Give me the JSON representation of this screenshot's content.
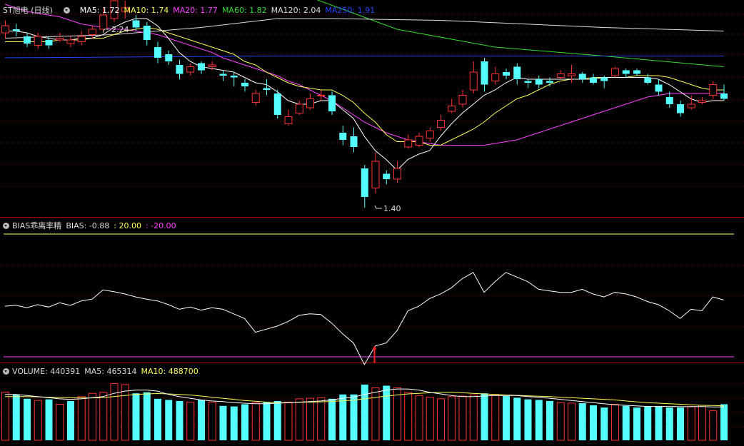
{
  "header": {
    "stock": "ST旭电 (日线)",
    "ma_labels": [
      {
        "label": "MA5: 1.72",
        "color": "#ffffff"
      },
      {
        "label": "MA10: 1.74",
        "color": "#ffff55"
      },
      {
        "label": "MA20: 1.77",
        "color": "#ff44ff"
      },
      {
        "label": "MA60: 1.82",
        "color": "#33dd33"
      },
      {
        "label": "MA120: 2.04",
        "color": "#dddddd"
      },
      {
        "label": "MA250: 1.91",
        "color": "#2244ff"
      }
    ],
    "high_label": "2.24",
    "low_label": "1.40"
  },
  "bias_header": {
    "name": "BIAS乖离率精",
    "value": "BIAS: -0.88",
    "upper": ": 20.00",
    "lower": ": -20.00"
  },
  "volume_header": {
    "value": "VOLUME: 440391",
    "ma5": "MA5: 465314",
    "ma10": "MA10: 488700"
  },
  "colors": {
    "up": "#ff3232",
    "down": "#54ffff",
    "grid": "#8b0000"
  },
  "chart_data": {
    "type": "candlestick",
    "candles": [
      [
        1.98,
        2.02,
        2.05,
        1.95
      ],
      [
        2.0,
        1.99,
        2.03,
        1.96
      ],
      [
        1.96,
        1.92,
        1.98,
        1.9
      ],
      [
        1.91,
        1.96,
        1.98,
        1.89
      ],
      [
        1.94,
        1.91,
        1.96,
        1.89
      ],
      [
        1.94,
        1.95,
        1.98,
        1.93
      ],
      [
        1.92,
        1.94,
        1.96,
        1.9
      ],
      [
        1.93,
        1.96,
        1.99,
        1.91
      ],
      [
        1.97,
        2.0,
        2.02,
        1.95
      ],
      [
        2.0,
        2.08,
        2.12,
        1.99
      ],
      [
        2.06,
        2.16,
        2.24,
        2.04
      ],
      [
        2.1,
        2.12,
        2.16,
        2.06
      ],
      [
        2.05,
        2.01,
        2.08,
        1.99
      ],
      [
        2.02,
        1.94,
        2.04,
        1.91
      ],
      [
        1.9,
        1.84,
        1.93,
        1.81
      ],
      [
        1.86,
        1.82,
        1.88,
        1.8
      ],
      [
        1.8,
        1.75,
        1.83,
        1.72
      ],
      [
        1.76,
        1.79,
        1.81,
        1.74
      ],
      [
        1.81,
        1.77,
        1.82,
        1.75
      ],
      [
        1.79,
        1.8,
        1.82,
        1.77
      ],
      [
        1.75,
        1.74,
        1.77,
        1.71
      ],
      [
        1.74,
        1.73,
        1.76,
        1.68
      ],
      [
        1.7,
        1.68,
        1.72,
        1.65
      ],
      [
        1.59,
        1.64,
        1.66,
        1.57
      ],
      [
        1.67,
        1.66,
        1.72,
        1.63
      ],
      [
        1.64,
        1.52,
        1.66,
        1.5
      ],
      [
        1.47,
        1.51,
        1.55,
        1.46
      ],
      [
        1.53,
        1.58,
        1.6,
        1.52
      ],
      [
        1.56,
        1.61,
        1.64,
        1.55
      ],
      [
        1.63,
        1.63,
        1.66,
        1.6
      ],
      [
        1.63,
        1.54,
        1.65,
        1.52
      ],
      [
        1.42,
        1.38,
        1.46,
        1.35
      ],
      [
        1.4,
        1.34,
        1.45,
        1.31
      ],
      [
        1.22,
        1.06,
        1.24,
        1.0
      ],
      [
        1.11,
        1.26,
        1.31,
        1.08
      ],
      [
        1.19,
        1.16,
        1.21,
        1.13
      ],
      [
        1.16,
        1.22,
        1.26,
        1.14
      ],
      [
        1.34,
        1.38,
        1.41,
        1.33
      ],
      [
        1.35,
        1.4,
        1.42,
        1.34
      ],
      [
        1.39,
        1.43,
        1.45,
        1.37
      ],
      [
        1.45,
        1.49,
        1.52,
        1.43
      ],
      [
        1.54,
        1.57,
        1.61,
        1.53
      ],
      [
        1.58,
        1.63,
        1.66,
        1.56
      ],
      [
        1.66,
        1.76,
        1.82,
        1.64
      ],
      [
        1.82,
        1.69,
        1.84,
        1.65
      ],
      [
        1.71,
        1.75,
        1.79,
        1.69
      ],
      [
        1.76,
        1.74,
        1.78,
        1.72
      ],
      [
        1.79,
        1.72,
        1.81,
        1.69
      ],
      [
        1.71,
        1.7,
        1.72,
        1.67
      ],
      [
        1.72,
        1.69,
        1.74,
        1.67
      ],
      [
        1.71,
        1.7,
        1.73,
        1.68
      ],
      [
        1.73,
        1.75,
        1.77,
        1.72
      ],
      [
        1.74,
        1.75,
        1.8,
        1.7
      ],
      [
        1.75,
        1.72,
        1.76,
        1.7
      ],
      [
        1.73,
        1.7,
        1.75,
        1.69
      ],
      [
        1.73,
        1.71,
        1.74,
        1.67
      ],
      [
        1.74,
        1.78,
        1.79,
        1.73
      ],
      [
        1.77,
        1.75,
        1.78,
        1.73
      ],
      [
        1.77,
        1.75,
        1.78,
        1.74
      ],
      [
        1.73,
        1.7,
        1.75,
        1.69
      ],
      [
        1.69,
        1.65,
        1.72,
        1.63
      ],
      [
        1.62,
        1.58,
        1.65,
        1.56
      ],
      [
        1.58,
        1.53,
        1.6,
        1.51
      ],
      [
        1.56,
        1.58,
        1.63,
        1.55
      ],
      [
        1.59,
        1.6,
        1.62,
        1.58
      ],
      [
        1.63,
        1.69,
        1.71,
        1.61
      ],
      [
        1.64,
        1.61,
        1.69,
        1.6
      ]
    ],
    "ma5": [
      1.99,
      1.99,
      1.98,
      1.96,
      1.95,
      1.94,
      1.94,
      1.95,
      1.95,
      1.97,
      2.01,
      2.04,
      2.06,
      2.06,
      2.02,
      1.95,
      1.87,
      1.82,
      1.79,
      1.78,
      1.77,
      1.76,
      1.73,
      1.7,
      1.69,
      1.65,
      1.6,
      1.58,
      1.58,
      1.6,
      1.6,
      1.55,
      1.5,
      1.4,
      1.32,
      1.27,
      1.21,
      1.27,
      1.3,
      1.32,
      1.4,
      1.47,
      1.53,
      1.58,
      1.63,
      1.66,
      1.7,
      1.73,
      1.72,
      1.72,
      1.72,
      1.72,
      1.72,
      1.72,
      1.72,
      1.73,
      1.73,
      1.73,
      1.73,
      1.73,
      1.72,
      1.69,
      1.65,
      1.61,
      1.59,
      1.6,
      1.6
    ],
    "ma10": [
      1.93,
      1.93,
      1.93,
      1.93,
      1.93,
      1.94,
      1.94,
      1.94,
      1.95,
      1.95,
      1.97,
      1.99,
      2.0,
      2.01,
      2.0,
      1.98,
      1.96,
      1.94,
      1.92,
      1.9,
      1.88,
      1.86,
      1.82,
      1.8,
      1.76,
      1.73,
      1.7,
      1.68,
      1.67,
      1.66,
      1.66,
      1.63,
      1.59,
      1.53,
      1.48,
      1.41,
      1.37,
      1.37,
      1.37,
      1.35,
      1.35,
      1.38,
      1.41,
      1.44,
      1.48,
      1.53,
      1.57,
      1.61,
      1.63,
      1.66,
      1.69,
      1.71,
      1.72,
      1.72,
      1.73,
      1.73,
      1.73,
      1.73,
      1.74,
      1.74,
      1.74,
      1.73,
      1.71,
      1.69,
      1.67,
      1.66,
      1.66
    ],
    "ma20": [
      2.14,
      2.12,
      2.1,
      2.09,
      2.08,
      2.07,
      2.05,
      2.03,
      2.02,
      2.01,
      2.0,
      2.0,
      1.99,
      1.98,
      1.97,
      1.95,
      1.93,
      1.91,
      1.89,
      1.87,
      1.84,
      1.82,
      1.8,
      1.78,
      1.76,
      1.74,
      1.71,
      1.69,
      1.66,
      1.63,
      1.6,
      1.56,
      1.52,
      1.48,
      1.45,
      1.42,
      1.4,
      1.38,
      1.37,
      1.36,
      1.35,
      1.35,
      1.35,
      1.35,
      1.35,
      1.36,
      1.37,
      1.38,
      1.4,
      1.42,
      1.44,
      1.46,
      1.48,
      1.5,
      1.52,
      1.54,
      1.56,
      1.58,
      1.6,
      1.62,
      1.63,
      1.64,
      1.64,
      1.64,
      1.64,
      1.64,
      1.64
    ],
    "ma60_path": [
      [
        0,
        2.3
      ],
      [
        8,
        2.32
      ],
      [
        14,
        2.35
      ],
      [
        20,
        2.33
      ],
      [
        28,
        2.18
      ],
      [
        36,
        2.0
      ],
      [
        45,
        1.9
      ],
      [
        55,
        1.85
      ],
      [
        66,
        1.79
      ]
    ],
    "ma120_path": [
      [
        0,
        1.95
      ],
      [
        10,
        1.97
      ],
      [
        18,
        2.01
      ],
      [
        25,
        2.06
      ],
      [
        30,
        2.06
      ],
      [
        40,
        2.05
      ],
      [
        55,
        2.01
      ],
      [
        66,
        1.99
      ]
    ],
    "ma250_path": [
      [
        0,
        1.84
      ],
      [
        25,
        1.85
      ],
      [
        66,
        1.85
      ]
    ],
    "bias": [
      -3.5,
      -3.2,
      -4.0,
      -3.0,
      -3.8,
      -2.4,
      -3.2,
      -1.8,
      -1.2,
      1.8,
      1.2,
      0.5,
      -0.5,
      -1.2,
      -1.8,
      -3.0,
      -4.5,
      -3.8,
      -4.8,
      -4.0,
      -4.5,
      -6.0,
      -7.5,
      -12.0,
      -11.0,
      -10.0,
      -8.5,
      -6.5,
      -6.0,
      -6.2,
      -9.0,
      -12.5,
      -15.5,
      -22.5,
      -16.5,
      -15.5,
      -11.5,
      -5.0,
      -3.5,
      -1.0,
      0.5,
      2.5,
      5.5,
      7.5,
      1.0,
      4.5,
      7.5,
      6.0,
      4.5,
      2.0,
      1.5,
      1.0,
      1.0,
      2.0,
      0.5,
      -0.5,
      1.0,
      0.5,
      -0.5,
      -2.0,
      -3.0,
      -5.0,
      -7.5,
      -4.5,
      -5.0,
      -0.5,
      -1.5
    ],
    "bias_ylim": [
      -24.0,
      24.0
    ],
    "volume": [
      440,
      420,
      380,
      365,
      375,
      330,
      360,
      400,
      430,
      440,
      520,
      510,
      430,
      440,
      380,
      370,
      360,
      350,
      370,
      350,
      315,
      310,
      330,
      345,
      350,
      360,
      350,
      380,
      385,
      390,
      380,
      420,
      420,
      510,
      480,
      500,
      480,
      440,
      410,
      395,
      380,
      400,
      405,
      415,
      430,
      420,
      405,
      390,
      375,
      370,
      360,
      345,
      340,
      340,
      320,
      300,
      330,
      315,
      300,
      310,
      310,
      300,
      300,
      310,
      320,
      270,
      330
    ],
    "volume_up": [
      true,
      false,
      false,
      true,
      false,
      true,
      false,
      true,
      true,
      true,
      true,
      true,
      false,
      false,
      false,
      false,
      false,
      true,
      false,
      true,
      false,
      false,
      false,
      true,
      false,
      false,
      true,
      true,
      true,
      true,
      false,
      false,
      false,
      false,
      true,
      false,
      true,
      true,
      true,
      true,
      true,
      true,
      true,
      true,
      false,
      true,
      false,
      false,
      false,
      false,
      false,
      true,
      true,
      false,
      false,
      false,
      true,
      false,
      false,
      false,
      false,
      false,
      false,
      true,
      true,
      true,
      false
    ],
    "vol_ma5": [
      420,
      420,
      410,
      400,
      390,
      380,
      375,
      380,
      390,
      400,
      430,
      450,
      460,
      460,
      450,
      420,
      400,
      385,
      370,
      360,
      355,
      345,
      340,
      335,
      335,
      340,
      345,
      350,
      355,
      360,
      370,
      385,
      395,
      420,
      440,
      460,
      470,
      470,
      460,
      440,
      425,
      410,
      400,
      400,
      405,
      410,
      410,
      410,
      400,
      395,
      385,
      375,
      365,
      355,
      345,
      335,
      325,
      320,
      315,
      310,
      310,
      310,
      308,
      308,
      310,
      305,
      305
    ],
    "vol_ma10": [
      400,
      400,
      400,
      398,
      395,
      392,
      390,
      388,
      388,
      390,
      400,
      410,
      420,
      425,
      428,
      425,
      420,
      415,
      405,
      395,
      385,
      375,
      365,
      358,
      350,
      345,
      345,
      348,
      350,
      352,
      356,
      362,
      368,
      380,
      392,
      405,
      415,
      425,
      430,
      435,
      440,
      440,
      435,
      430,
      425,
      420,
      415,
      412,
      408,
      404,
      400,
      395,
      390,
      385,
      380,
      375,
      370,
      360,
      352,
      345,
      340,
      335,
      330,
      325,
      320,
      318,
      316
    ],
    "volume_ylim": [
      0,
      540
    ]
  }
}
